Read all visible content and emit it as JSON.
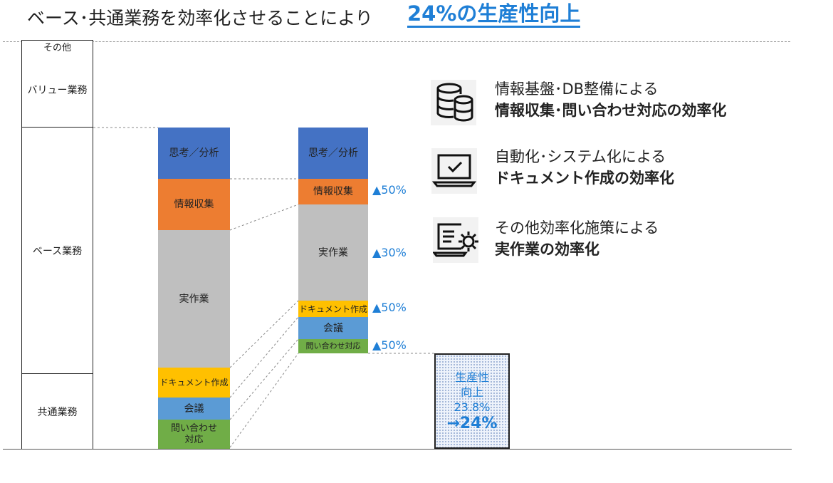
{
  "title": {
    "main": "ベース･共通業務を効率化させることにより",
    "highlight": "24%の生産性向上"
  },
  "categories": {
    "other": "その他",
    "value": "バリュー業務",
    "base": "ベース業務",
    "common": "共通業務"
  },
  "before_bar": {
    "thinking": "思考／分析",
    "info": "情報収集",
    "work": "実作業",
    "docs": "ドキュメント作成",
    "meeting": "会議",
    "inquiry": "問い合わせ\n対応"
  },
  "after_bar": {
    "thinking": "思考／分析",
    "info": "情報収集",
    "work": "実作業",
    "docs": "ドキュメント作成",
    "meeting": "会議",
    "inquiry": "問い合わせ対応"
  },
  "reductions": {
    "info": "▲50%",
    "work": "▲30%",
    "docs": "▲50%",
    "inquiry": "▲50%"
  },
  "gain_box": {
    "line1": "生産性",
    "line2": "向上",
    "line3": "23.8%",
    "line4": "→24%"
  },
  "features": [
    {
      "icon": "database-icon",
      "line1": "情報基盤･DB整備による",
      "line2": "情報収集･問い合わせ対応の効率化"
    },
    {
      "icon": "laptop-check-icon",
      "line1": "自動化･システム化による",
      "line2": "ドキュメント作成の効率化"
    },
    {
      "icon": "screen-gear-icon",
      "line1": "その他効率化施策による",
      "line2": "実作業の効率化"
    }
  ],
  "colors": {
    "thinking": "#4472c4",
    "info": "#ed7d31",
    "work": "#bfbfbf",
    "docs": "#ffc000",
    "meeting": "#5b9bd5",
    "inquiry": "#70ad47",
    "accent": "#1f7fd6"
  }
}
